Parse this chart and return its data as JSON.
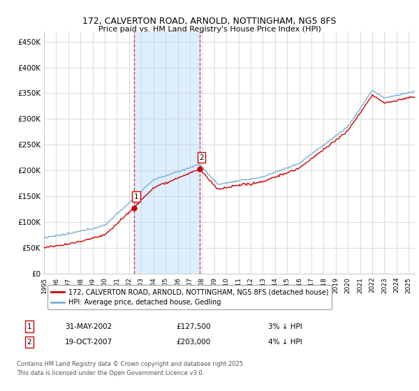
{
  "title": "172, CALVERTON ROAD, ARNOLD, NOTTINGHAM, NG5 8FS",
  "subtitle": "Price paid vs. HM Land Registry's House Price Index (HPI)",
  "xlim_start": 1995.0,
  "xlim_end": 2025.5,
  "ylim": [
    0,
    470000
  ],
  "yticks": [
    0,
    50000,
    100000,
    150000,
    200000,
    250000,
    300000,
    350000,
    400000,
    450000
  ],
  "ytick_labels": [
    "£0",
    "£50K",
    "£100K",
    "£150K",
    "£200K",
    "£250K",
    "£300K",
    "£350K",
    "£400K",
    "£450K"
  ],
  "sale1_x": 2002.42,
  "sale1_y": 127500,
  "sale2_x": 2007.8,
  "sale2_y": 203000,
  "sale1_label": "31-MAY-2002",
  "sale1_price": "£127,500",
  "sale1_hpi": "3% ↓ HPI",
  "sale2_label": "19-OCT-2007",
  "sale2_price": "£203,000",
  "sale2_hpi": "4% ↓ HPI",
  "line1_color": "#cc0000",
  "line2_color": "#7aafd4",
  "shade_color": "#ddeeff",
  "legend1": "172, CALVERTON ROAD, ARNOLD, NOTTINGHAM, NG5 8FS (detached house)",
  "legend2": "HPI: Average price, detached house, Gedling",
  "footnote1": "Contains HM Land Registry data © Crown copyright and database right 2025.",
  "footnote2": "This data is licensed under the Open Government Licence v3.0.",
  "background_color": "#ffffff",
  "grid_color": "#cccccc",
  "seed": 12345
}
